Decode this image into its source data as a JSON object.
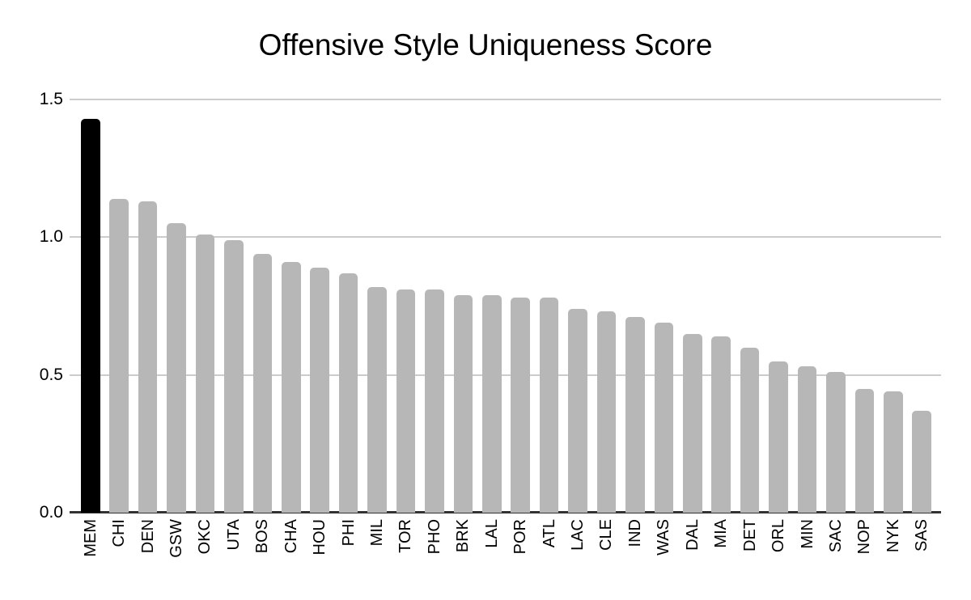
{
  "chart_data": {
    "type": "bar",
    "title": "Offensive Style Uniqueness Score",
    "xlabel": "",
    "ylabel": "",
    "categories": [
      "MEM",
      "CHI",
      "DEN",
      "GSW",
      "OKC",
      "UTA",
      "BOS",
      "CHA",
      "HOU",
      "PHI",
      "MIL",
      "TOR",
      "PHO",
      "BRK",
      "LAL",
      "POR",
      "ATL",
      "LAC",
      "CLE",
      "IND",
      "WAS",
      "DAL",
      "MIA",
      "DET",
      "ORL",
      "MIN",
      "SAC",
      "NOP",
      "NYK",
      "SAS"
    ],
    "values": [
      1.43,
      1.14,
      1.13,
      1.05,
      1.01,
      0.99,
      0.94,
      0.91,
      0.89,
      0.87,
      0.82,
      0.81,
      0.81,
      0.79,
      0.79,
      0.78,
      0.78,
      0.74,
      0.73,
      0.71,
      0.69,
      0.65,
      0.64,
      0.6,
      0.55,
      0.53,
      0.51,
      0.45,
      0.44,
      0.37
    ],
    "ylim": [
      0,
      1.5
    ],
    "yticks": [
      0.0,
      0.5,
      1.0,
      1.5
    ],
    "ytick_labels": [
      "0.0",
      "0.5",
      "1.0",
      "1.5"
    ],
    "grid": true,
    "legend": false,
    "highlighted_category": "MEM",
    "colors": {
      "bar_default": "#b7b7b7",
      "bar_highlight": "#000000",
      "gridline": "#cccccc",
      "axis_line": "#333333",
      "text": "#000000",
      "background": "#ffffff"
    }
  }
}
